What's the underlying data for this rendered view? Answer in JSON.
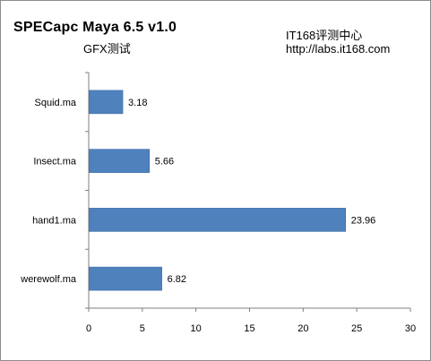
{
  "header": {
    "title": "SPECapc Maya 6.5 v1.0",
    "subtitle": "GFX测试",
    "brand": "IT168评测中心",
    "url": "http://labs.it168.com"
  },
  "chart_data": {
    "type": "bar",
    "orientation": "horizontal",
    "categories": [
      "Squid.ma",
      "Insect.ma",
      "hand1.ma",
      "werewolf.ma"
    ],
    "values": [
      3.18,
      5.66,
      23.96,
      6.82
    ],
    "data_labels": [
      "3.18",
      "5.66",
      "23.96",
      "6.82"
    ],
    "xlim": [
      0,
      30
    ],
    "x_ticks": [
      "0",
      "5",
      "10",
      "15",
      "20",
      "25",
      "30"
    ],
    "grid": false,
    "legend": "none",
    "bar_color": "#4f81bd"
  }
}
